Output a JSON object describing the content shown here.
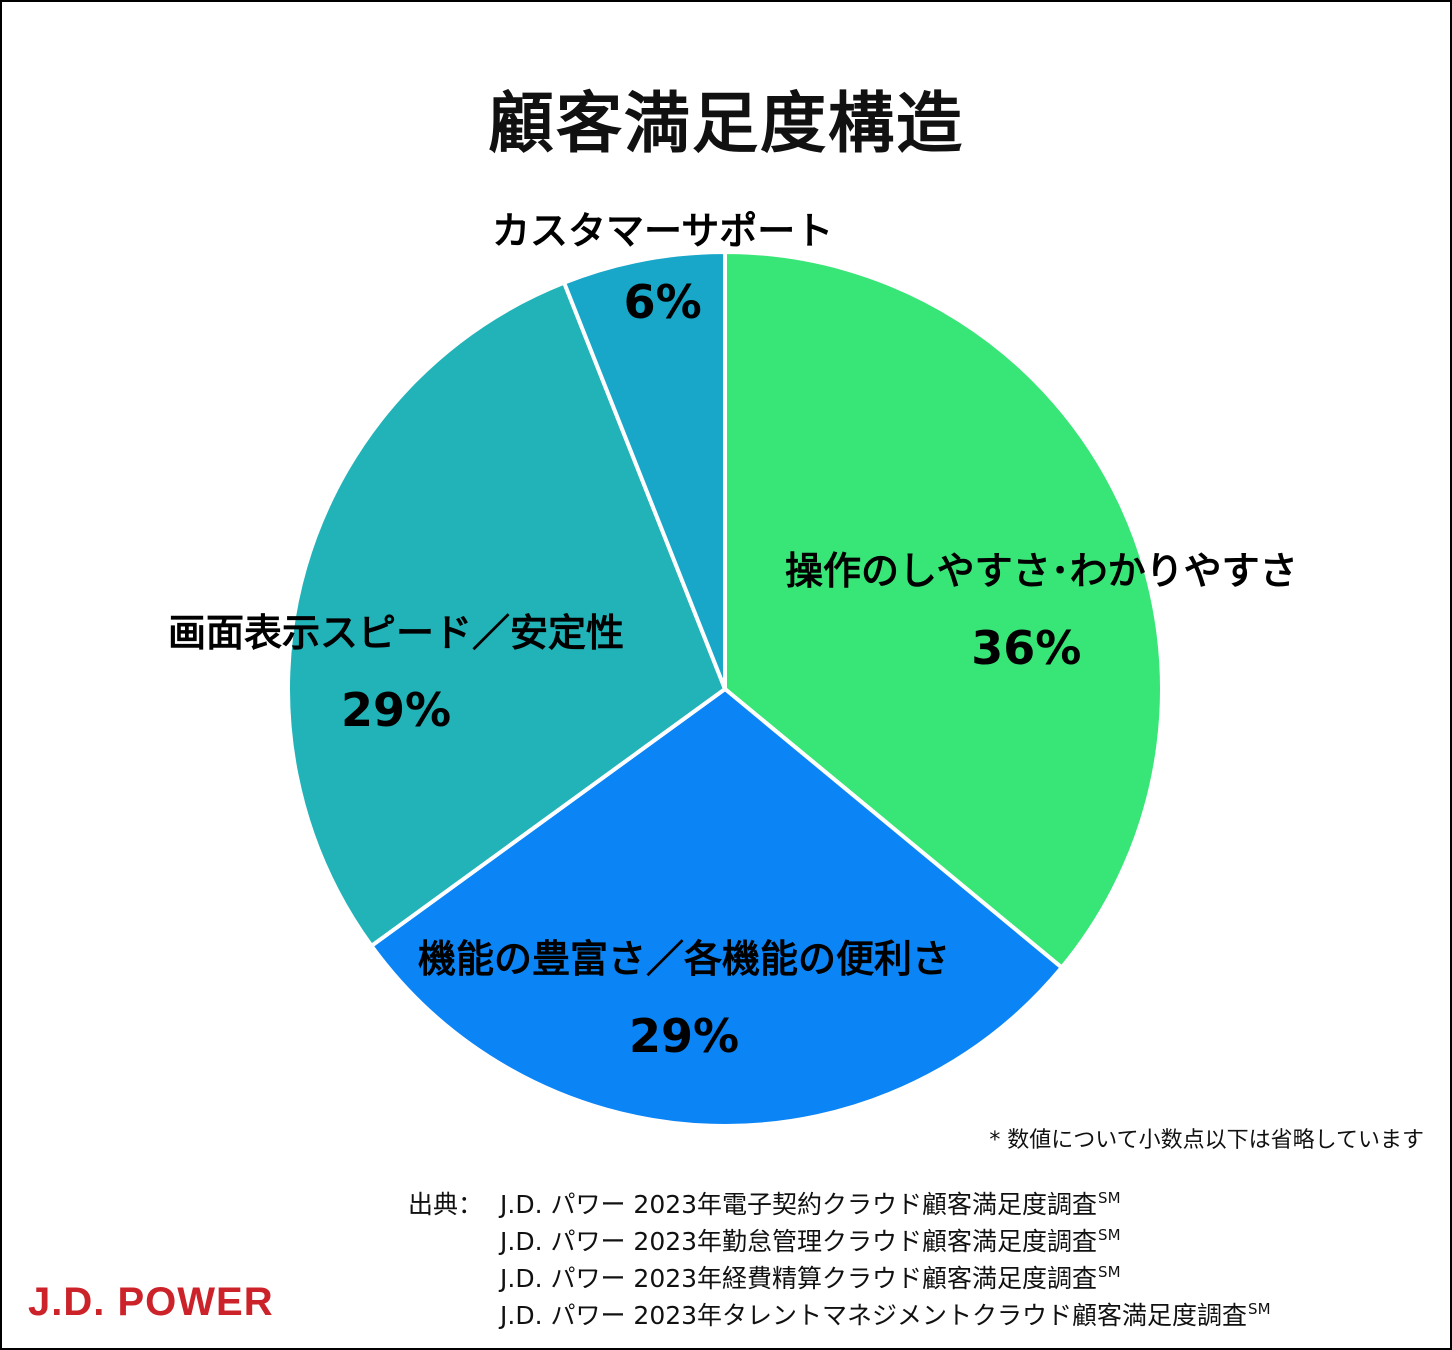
{
  "chart_data": {
    "type": "pie",
    "title": "顧客満足度構造",
    "slices": [
      {
        "label": "操作のしやすさ･わかりやすさ",
        "value": 36,
        "value_label": "36%",
        "color": "#38e577"
      },
      {
        "label": "機能の豊富さ／各機能の便利さ",
        "value": 29,
        "value_label": "29%",
        "color": "#0b84f6"
      },
      {
        "label": "画面表示スピード／安定性",
        "value": 29,
        "value_label": "29%",
        "color": "#21b3b7"
      },
      {
        "label": "カスタマーサポート",
        "value": 6,
        "value_label": "6%",
        "color": "#18a6c9"
      }
    ],
    "start": "top",
    "direction": "clockwise"
  },
  "note": "* 数値について小数点以下は省略しています",
  "source": {
    "heading": "出典：",
    "lines": [
      {
        "text": "J.D. パワー 2023年電子契約クラウド顧客満足度調査",
        "mark": "SM"
      },
      {
        "text": "J.D. パワー 2023年勤怠管理クラウド顧客満足度調査",
        "mark": "SM"
      },
      {
        "text": "J.D. パワー 2023年経費精算クラウド顧客満足度調査",
        "mark": "SM"
      },
      {
        "text": "J.D. パワー 2023年タレントマネジメントクラウド顧客満足度調査",
        "mark": "SM"
      }
    ]
  },
  "logo": "J.D. POWER"
}
